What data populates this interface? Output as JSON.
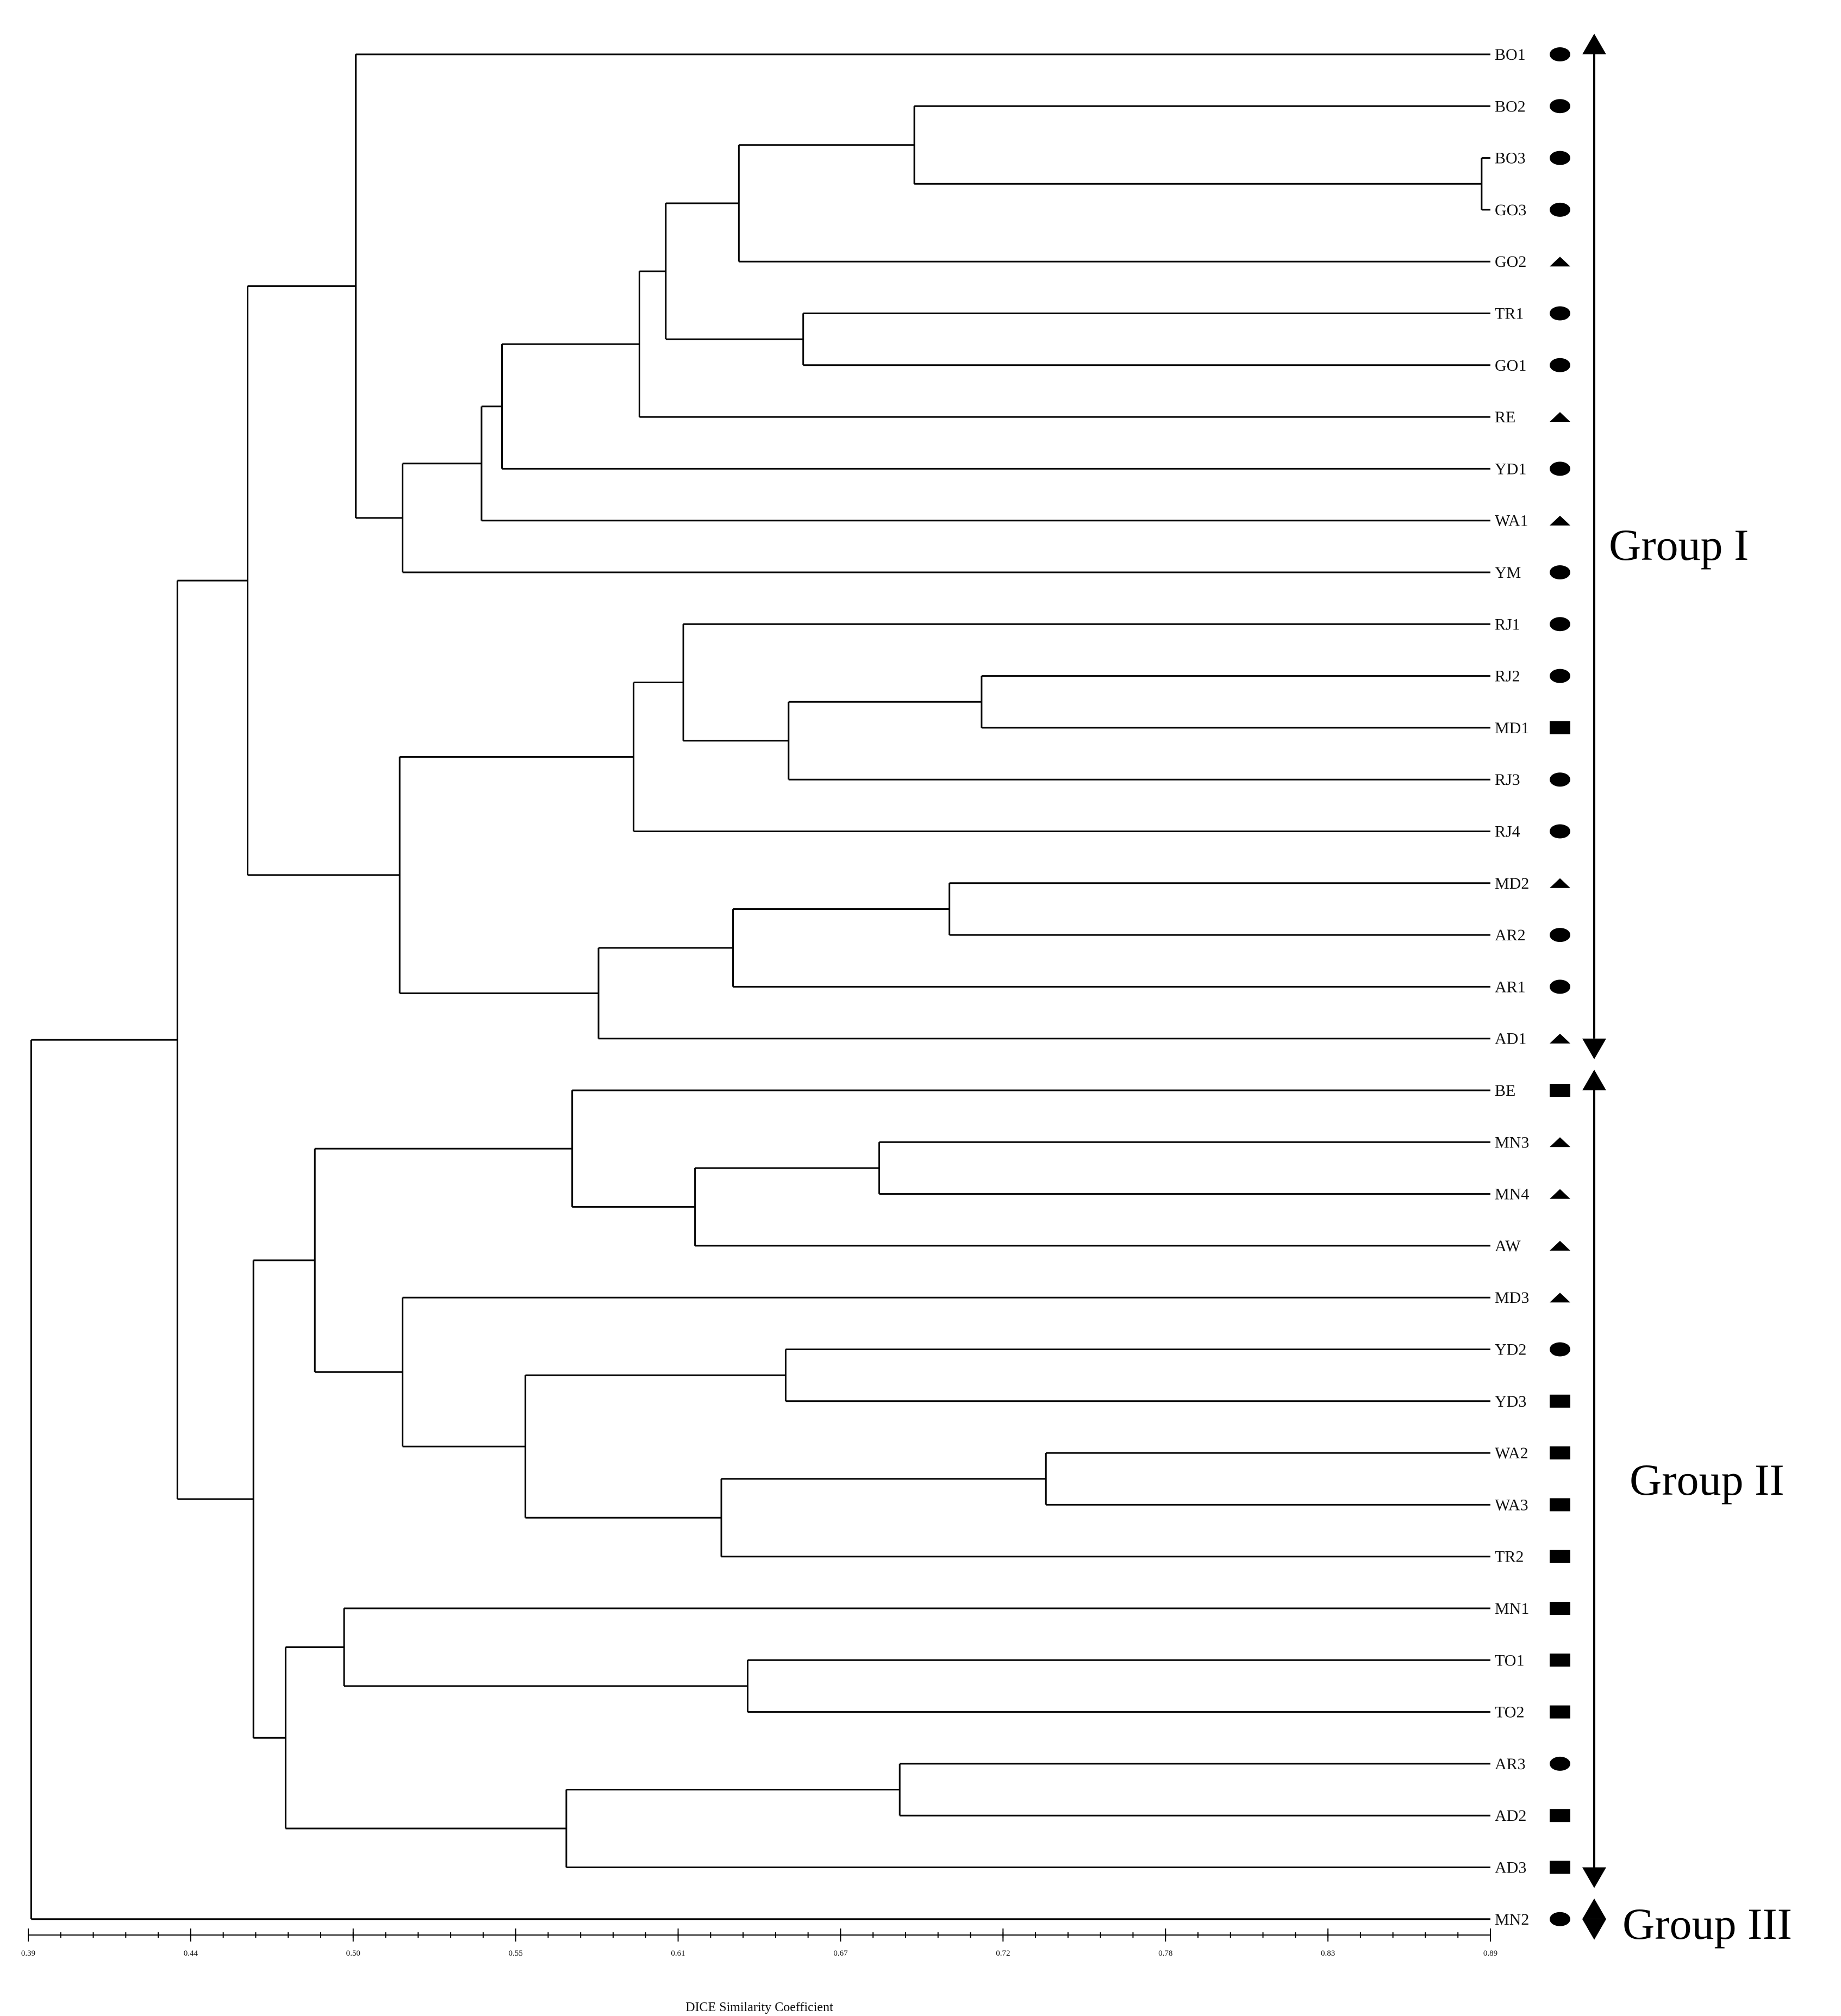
{
  "chart_data": {
    "type": "dendrogram",
    "xlabel": "DICE Similarity Coefficient",
    "ticks": [
      "0.39",
      "0.44",
      "0.50",
      "0.55",
      "0.61",
      "0.67",
      "0.72",
      "0.78",
      "0.83",
      "0.89"
    ],
    "xlim": [
      0.39,
      0.89
    ],
    "leaves": [
      {
        "label": "BO1",
        "marker": "circle"
      },
      {
        "label": "BO2",
        "marker": "circle"
      },
      {
        "label": "BO3",
        "marker": "circle"
      },
      {
        "label": "GO3",
        "marker": "circle"
      },
      {
        "label": "GO2",
        "marker": "triangle"
      },
      {
        "label": "TR1",
        "marker": "circle"
      },
      {
        "label": "GO1",
        "marker": "circle"
      },
      {
        "label": "RE",
        "marker": "triangle"
      },
      {
        "label": "YD1",
        "marker": "circle"
      },
      {
        "label": "WA1",
        "marker": "triangle"
      },
      {
        "label": "YM",
        "marker": "circle"
      },
      {
        "label": "RJ1",
        "marker": "circle"
      },
      {
        "label": "RJ2",
        "marker": "circle"
      },
      {
        "label": "MD1",
        "marker": "square"
      },
      {
        "label": "RJ3",
        "marker": "circle"
      },
      {
        "label": "RJ4",
        "marker": "circle"
      },
      {
        "label": "MD2",
        "marker": "triangle"
      },
      {
        "label": "AR2",
        "marker": "circle"
      },
      {
        "label": "AR1",
        "marker": "circle"
      },
      {
        "label": "AD1",
        "marker": "triangle"
      },
      {
        "label": "BE",
        "marker": "square"
      },
      {
        "label": "MN3",
        "marker": "triangle"
      },
      {
        "label": "MN4",
        "marker": "triangle"
      },
      {
        "label": "AW",
        "marker": "triangle"
      },
      {
        "label": "MD3",
        "marker": "triangle"
      },
      {
        "label": "YD2",
        "marker": "circle"
      },
      {
        "label": "YD3",
        "marker": "square"
      },
      {
        "label": "WA2",
        "marker": "square"
      },
      {
        "label": "WA3",
        "marker": "square"
      },
      {
        "label": "TR2",
        "marker": "square"
      },
      {
        "label": "MN1",
        "marker": "square"
      },
      {
        "label": "TO1",
        "marker": "square"
      },
      {
        "label": "TO2",
        "marker": "square"
      },
      {
        "label": "AR3",
        "marker": "circle"
      },
      {
        "label": "AD2",
        "marker": "square"
      },
      {
        "label": "AD3",
        "marker": "square"
      },
      {
        "label": "MN2",
        "marker": "circle"
      }
    ],
    "merges": [
      {
        "id": "n1",
        "children": [
          "BO3",
          "GO3"
        ],
        "similarity": 0.887
      },
      {
        "id": "n2",
        "children": [
          "BO2",
          "n1"
        ],
        "similarity": 0.693
      },
      {
        "id": "n3",
        "children": [
          "n2",
          "GO2"
        ],
        "similarity": 0.633
      },
      {
        "id": "n4",
        "children": [
          "TR1",
          "GO1"
        ],
        "similarity": 0.655
      },
      {
        "id": "n5",
        "children": [
          "n3",
          "n4"
        ],
        "similarity": 0.608
      },
      {
        "id": "n6",
        "children": [
          "n5",
          "RE"
        ],
        "similarity": 0.599
      },
      {
        "id": "n7",
        "children": [
          "n6",
          "YD1"
        ],
        "similarity": 0.552
      },
      {
        "id": "n8",
        "children": [
          "n7",
          "WA1"
        ],
        "similarity": 0.545
      },
      {
        "id": "n9",
        "children": [
          "n8",
          "YM"
        ],
        "similarity": 0.518
      },
      {
        "id": "n10",
        "children": [
          "BO1",
          "n9"
        ],
        "similarity": 0.502
      },
      {
        "id": "n11",
        "children": [
          "RJ2",
          "MD1"
        ],
        "similarity": 0.716
      },
      {
        "id": "n12",
        "children": [
          "n11",
          "RJ3"
        ],
        "similarity": 0.65
      },
      {
        "id": "n13",
        "children": [
          "RJ1",
          "n12"
        ],
        "similarity": 0.614
      },
      {
        "id": "n14",
        "children": [
          "n13",
          "RJ4"
        ],
        "similarity": 0.597
      },
      {
        "id": "n15",
        "children": [
          "MD2",
          "AR2"
        ],
        "similarity": 0.705
      },
      {
        "id": "n16",
        "children": [
          "n15",
          "AR1"
        ],
        "similarity": 0.631
      },
      {
        "id": "n17",
        "children": [
          "n16",
          "AD1"
        ],
        "similarity": 0.585
      },
      {
        "id": "n18",
        "children": [
          "n14",
          "n17"
        ],
        "similarity": 0.517
      },
      {
        "id": "n19",
        "children": [
          "n10",
          "n18"
        ],
        "similarity": 0.465
      },
      {
        "id": "n20",
        "children": [
          "MN3",
          "MN4"
        ],
        "similarity": 0.681
      },
      {
        "id": "n21",
        "children": [
          "n20",
          "AW"
        ],
        "similarity": 0.618
      },
      {
        "id": "n22",
        "children": [
          "BE",
          "n21"
        ],
        "similarity": 0.576
      },
      {
        "id": "n23",
        "children": [
          "YD2",
          "YD3"
        ],
        "similarity": 0.649
      },
      {
        "id": "n24",
        "children": [
          "WA2",
          "WA3"
        ],
        "similarity": 0.738
      },
      {
        "id": "n25",
        "children": [
          "n24",
          "TR2"
        ],
        "similarity": 0.627
      },
      {
        "id": "n26",
        "children": [
          "n23",
          "n25"
        ],
        "similarity": 0.56
      },
      {
        "id": "n27",
        "children": [
          "MD3",
          "n26"
        ],
        "similarity": 0.518
      },
      {
        "id": "n28",
        "children": [
          "n22",
          "n27"
        ],
        "similarity": 0.488
      },
      {
        "id": "n29",
        "children": [
          "TO1",
          "TO2"
        ],
        "similarity": 0.636
      },
      {
        "id": "n30",
        "children": [
          "MN1",
          "n29"
        ],
        "similarity": 0.498
      },
      {
        "id": "n31",
        "children": [
          "AR3",
          "AD2"
        ],
        "similarity": 0.688
      },
      {
        "id": "n32",
        "children": [
          "n31",
          "AD3"
        ],
        "similarity": 0.574
      },
      {
        "id": "n33",
        "children": [
          "n30",
          "n32"
        ],
        "similarity": 0.478
      },
      {
        "id": "n34",
        "children": [
          "n28",
          "n33"
        ],
        "similarity": 0.467
      },
      {
        "id": "n35",
        "children": [
          "n19",
          "n34"
        ],
        "similarity": 0.441
      },
      {
        "id": "n36",
        "children": [
          "n35",
          "MN2"
        ],
        "similarity": 0.391
      }
    ],
    "groups": [
      {
        "label": "Group I",
        "from": "BO1",
        "to": "AD1"
      },
      {
        "label": "Group II",
        "from": "BE",
        "to": "AD3"
      },
      {
        "label": "Group III",
        "from": "MN2",
        "to": "MN2"
      }
    ]
  }
}
